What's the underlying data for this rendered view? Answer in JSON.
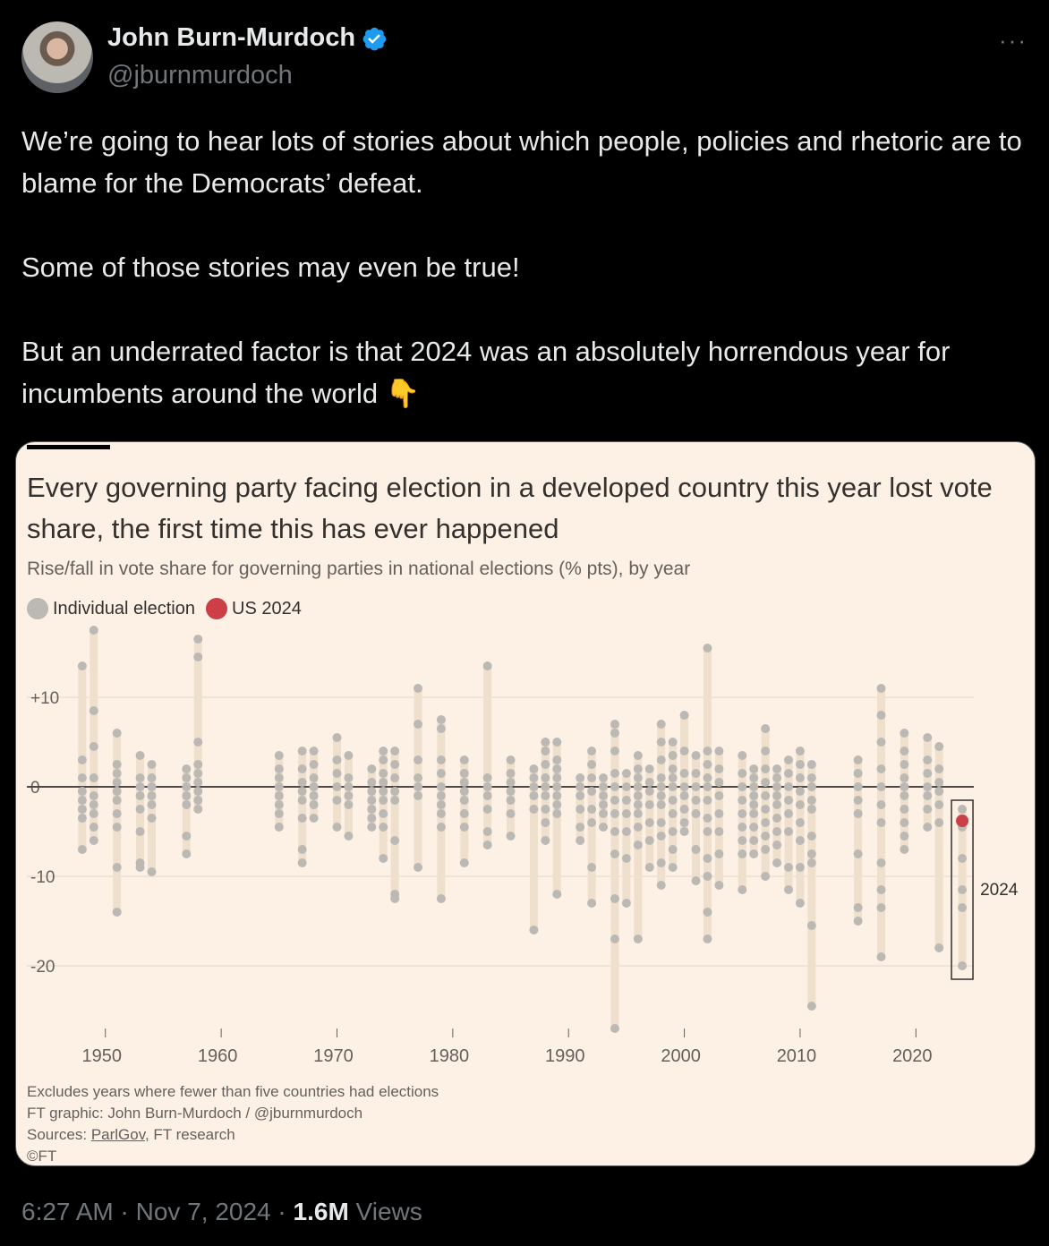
{
  "author": {
    "name": "John Burn-Murdoch",
    "handle": "@jburnmurdoch"
  },
  "more_label": "···",
  "tweet": {
    "p1": "We’re going to hear lots of stories about which people, policies and rhetoric are to blame for the Democrats’ defeat.",
    "p2": "Some of those stories may even be true!",
    "p3": "But an underrated factor is that 2024 was an absolutely horrendous year for incumbents around the world",
    "emoji": "👇"
  },
  "footer": {
    "time": "6:27 AM",
    "date": "Nov 7, 2024",
    "views_count": "1.6M",
    "views_label": "Views",
    "sep": "·"
  },
  "colors": {
    "dot": "#bcb9b5",
    "range": "#efdfcd",
    "highlight": "#cc3f47"
  },
  "chart_data": {
    "type": "scatter",
    "title": "Every governing party facing election in a developed country this year lost vote share, the first time this has ever happened",
    "subtitle": "Rise/fall in vote share for governing parties in national elections (% pts), by year",
    "legend": [
      {
        "name": "Individual election",
        "color": "#bcb9b5"
      },
      {
        "name": "US 2024",
        "color": "#cc3f47"
      }
    ],
    "ylim": [
      -27,
      17
    ],
    "y_ticks": [
      {
        "value": 10,
        "label": "+10"
      },
      {
        "value": 0,
        "label": "0"
      },
      {
        "value": -10,
        "label": "-10"
      },
      {
        "value": -20,
        "label": "-20"
      }
    ],
    "x_ticks": [
      1950,
      1960,
      1970,
      1980,
      1990,
      2000,
      2010,
      2020
    ],
    "xlim": [
      1946,
      2025
    ],
    "highlight_label": "2024",
    "series": [
      {
        "year": 1948,
        "values": [
          13.5,
          3,
          1,
          -0.5,
          -1.5,
          -2.5,
          -3.5,
          -7
        ]
      },
      {
        "year": 1949,
        "values": [
          17.5,
          8.5,
          4.5,
          1,
          -1,
          -2,
          -3,
          -4.5,
          -6
        ]
      },
      {
        "year": 1951,
        "values": [
          6,
          2.5,
          1.5,
          0.5,
          -0.5,
          -1.5,
          -3,
          -4.5,
          -9,
          -14
        ]
      },
      {
        "year": 1953,
        "values": [
          3.5,
          1,
          0,
          -1,
          -2.5,
          -5,
          -8.5,
          -9
        ]
      },
      {
        "year": 1954,
        "values": [
          2.5,
          1,
          0,
          -1,
          -2,
          -3.5,
          -9.5
        ]
      },
      {
        "year": 1957,
        "values": [
          2,
          1,
          0,
          -1,
          -2,
          -5.5,
          -7.5
        ]
      },
      {
        "year": 1958,
        "values": [
          16.5,
          14.5,
          5,
          2.5,
          1.5,
          0.5,
          -0.5,
          -1.5,
          -2.5
        ]
      },
      {
        "year": 1965,
        "values": [
          3.5,
          2,
          1,
          0,
          -1,
          -2,
          -3,
          -4.5
        ]
      },
      {
        "year": 1967,
        "values": [
          4,
          2,
          0.5,
          -0.5,
          -1.5,
          -3.5,
          -7,
          -8.5
        ]
      },
      {
        "year": 1968,
        "values": [
          4,
          2.5,
          1,
          0,
          -1,
          -2,
          -3.5
        ]
      },
      {
        "year": 1970,
        "values": [
          5.5,
          3,
          1.5,
          0,
          -1.5,
          -4.5
        ]
      },
      {
        "year": 1971,
        "values": [
          3.5,
          1,
          0,
          -1,
          -2,
          -5.5
        ]
      },
      {
        "year": 1973,
        "values": [
          2,
          0.5,
          -0.5,
          -1.5,
          -2.5,
          -3.5,
          -4.5
        ]
      },
      {
        "year": 1974,
        "values": [
          4,
          3,
          1.5,
          0.5,
          -0.5,
          -1.5,
          -3,
          -4.5,
          -8
        ]
      },
      {
        "year": 1975,
        "values": [
          4,
          2.5,
          1,
          -0.5,
          -1.5,
          -6,
          -12,
          -12.5
        ]
      },
      {
        "year": 1977,
        "values": [
          11,
          7,
          3,
          1,
          0,
          -1,
          -9
        ]
      },
      {
        "year": 1979,
        "values": [
          7.5,
          6.5,
          3,
          1.5,
          0,
          -1,
          -2,
          -3,
          -4.5,
          -12.5
        ]
      },
      {
        "year": 1981,
        "values": [
          3,
          1.5,
          0.5,
          -0.5,
          -1.5,
          -3,
          -4.5,
          -8.5
        ]
      },
      {
        "year": 1983,
        "values": [
          13.5,
          1,
          0,
          -1,
          -2.5,
          -5,
          -6.5
        ]
      },
      {
        "year": 1985,
        "values": [
          3,
          1.5,
          0.5,
          -0.5,
          -1.5,
          -3,
          -5.5
        ]
      },
      {
        "year": 1987,
        "values": [
          2,
          1,
          0,
          -1,
          -2.5,
          -16
        ]
      },
      {
        "year": 1988,
        "values": [
          5,
          4,
          2.5,
          1,
          0,
          -1,
          -2.5,
          -4,
          -6
        ]
      },
      {
        "year": 1989,
        "values": [
          5,
          3,
          2,
          1,
          0,
          -1,
          -2,
          -3,
          -12
        ]
      },
      {
        "year": 1991,
        "values": [
          1,
          0,
          -1,
          -2.5,
          -4.5,
          -6
        ]
      },
      {
        "year": 1992,
        "values": [
          4,
          2.5,
          1,
          -0.5,
          -2.5,
          -4,
          -9,
          -13
        ]
      },
      {
        "year": 1993,
        "values": [
          1,
          0,
          -1,
          -2,
          -3,
          -4.5
        ]
      },
      {
        "year": 1994,
        "values": [
          7,
          6,
          4,
          1.5,
          0,
          -1.5,
          -3,
          -5,
          -7.5,
          -12.5,
          -17,
          -27
        ]
      },
      {
        "year": 1995,
        "values": [
          1.5,
          0,
          -1.5,
          -3,
          -5,
          -8,
          -13
        ]
      },
      {
        "year": 1996,
        "values": [
          3.5,
          2,
          1,
          0,
          -1,
          -2,
          -3,
          -4.5,
          -6.5,
          -17
        ]
      },
      {
        "year": 1997,
        "values": [
          2,
          0.5,
          -0.5,
          -2,
          -4,
          -6,
          -9
        ]
      },
      {
        "year": 1998,
        "values": [
          7,
          5,
          3,
          1,
          0,
          -1,
          -2,
          -4,
          -5.5,
          -8.5,
          -11
        ]
      },
      {
        "year": 1999,
        "values": [
          5,
          3.5,
          2,
          1,
          0,
          -1.5,
          -3,
          -5,
          -7,
          -9
        ]
      },
      {
        "year": 2000,
        "values": [
          8,
          4,
          1.5,
          0,
          -1,
          -2.5,
          -4,
          -5
        ]
      },
      {
        "year": 2001,
        "values": [
          3.5,
          1.5,
          0,
          -1.5,
          -3,
          -7,
          -10.5
        ]
      },
      {
        "year": 2002,
        "values": [
          15.5,
          4,
          2.5,
          1,
          0,
          -1.5,
          -3.5,
          -5,
          -8,
          -10,
          -14,
          -17
        ]
      },
      {
        "year": 2003,
        "values": [
          4,
          2,
          0.5,
          -1,
          -3,
          -5,
          -7.5,
          -11
        ]
      },
      {
        "year": 2005,
        "values": [
          3.5,
          1.5,
          0,
          -1.5,
          -3,
          -4.5,
          -6,
          -7.5,
          -11.5
        ]
      },
      {
        "year": 2006,
        "values": [
          2,
          1,
          0,
          -1,
          -2,
          -3,
          -4.5,
          -6,
          -7.5
        ]
      },
      {
        "year": 2007,
        "values": [
          6.5,
          4,
          2,
          0.5,
          -1,
          -2.5,
          -4,
          -5.5,
          -7,
          -10
        ]
      },
      {
        "year": 2008,
        "values": [
          2,
          1,
          0,
          -1,
          -2,
          -3.5,
          -5,
          -6.5,
          -8.5
        ]
      },
      {
        "year": 2009,
        "values": [
          3,
          1.5,
          0,
          -1.5,
          -3,
          -5,
          -9,
          -11.5
        ]
      },
      {
        "year": 2010,
        "values": [
          4,
          2.5,
          1,
          -0.5,
          -2,
          -4,
          -6,
          -9,
          -13
        ]
      },
      {
        "year": 2011,
        "values": [
          2.5,
          1,
          0,
          -1.5,
          -2.5,
          -5.5,
          -7.5,
          -8.5,
          -15.5,
          -24.5
        ]
      },
      {
        "year": 2015,
        "values": [
          3,
          1.5,
          0,
          -1.5,
          -3,
          -7.5,
          -13.5,
          -15
        ]
      },
      {
        "year": 2017,
        "values": [
          11,
          8,
          5,
          2,
          0,
          -2,
          -4,
          -8.5,
          -11.5,
          -13.5,
          -19
        ]
      },
      {
        "year": 2019,
        "values": [
          6,
          4,
          2.5,
          1,
          0,
          -1,
          -2.5,
          -4,
          -5.5,
          -7
        ]
      },
      {
        "year": 2021,
        "values": [
          5.5,
          3,
          1.5,
          0,
          -1,
          -2.5,
          -4.5
        ]
      },
      {
        "year": 2022,
        "values": [
          4.5,
          2,
          0.5,
          -0.5,
          -2,
          -4,
          -18
        ]
      },
      {
        "year": 2024,
        "values": [
          -2.5,
          -4.5,
          -8,
          -11.5,
          -13.5,
          -20
        ],
        "highlight": -3.8
      }
    ]
  }
}
